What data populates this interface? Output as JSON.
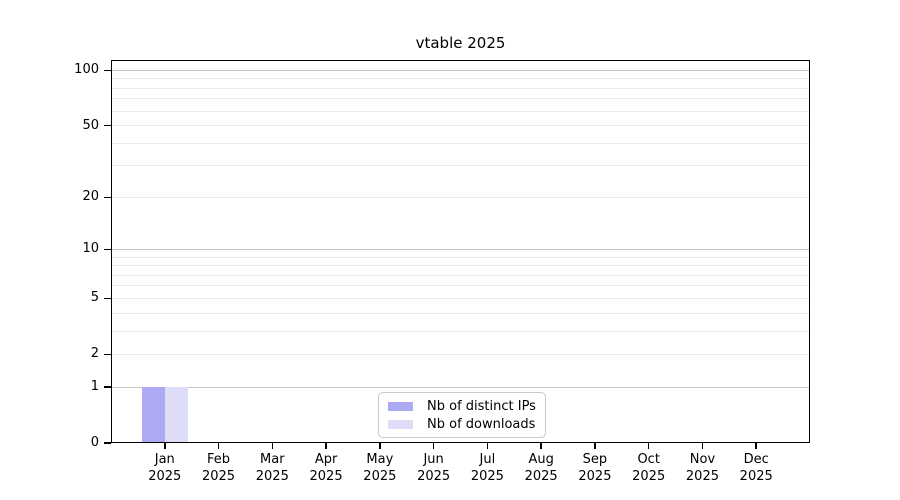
{
  "chart_data": {
    "type": "bar",
    "title": "vtable 2025",
    "categories": [
      "Jan",
      "Feb",
      "Mar",
      "Apr",
      "May",
      "Jun",
      "Jul",
      "Aug",
      "Sep",
      "Oct",
      "Nov",
      "Dec"
    ],
    "x_year_label": "2025",
    "series": [
      {
        "name": "Nb of distinct IPs",
        "color": "#abaaf2",
        "values": [
          1,
          0,
          0,
          0,
          0,
          0,
          0,
          0,
          0,
          0,
          0,
          0
        ]
      },
      {
        "name": "Nb of downloads",
        "color": "#ddddf8",
        "values": [
          1,
          0,
          0,
          0,
          0,
          0,
          0,
          0,
          0,
          0,
          0,
          0
        ]
      }
    ],
    "xlabel": "",
    "ylabel": "",
    "yscale": "log1p",
    "ylim": [
      0,
      113
    ],
    "y_tick_values": [
      0,
      1,
      2,
      5,
      10,
      20,
      50,
      100
    ],
    "y_tick_labels": [
      "0",
      "1",
      "2",
      "5",
      "10",
      "20",
      "50",
      "100"
    ],
    "gridlines": {
      "light_values": [
        2,
        3,
        4,
        5,
        6,
        7,
        8,
        9,
        20,
        30,
        40,
        50,
        60,
        70,
        80,
        90
      ],
      "dark_values": [
        1,
        10,
        100
      ],
      "light_color": "#ebebeb",
      "dark_color": "#c6c6c6"
    },
    "grid": "horizontal-only",
    "legend_position": "bottom-center-inside"
  },
  "colors": {
    "background": "#ffffff",
    "axis": "#000000",
    "text": "#000000",
    "legend_border": "#cacaca"
  }
}
